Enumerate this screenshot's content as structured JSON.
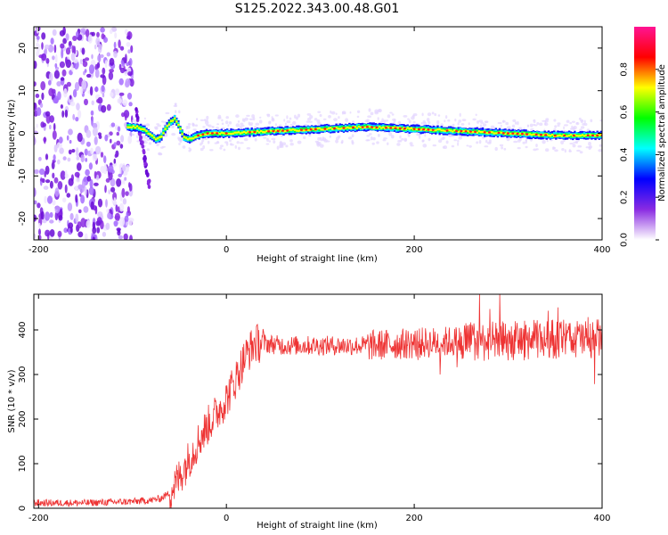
{
  "title": "S125.2022.343.00.48.G01",
  "chart_data": [
    {
      "type": "heatmap",
      "xlabel": "Height of straight line (km)",
      "ylabel": "Frequency (Hz)",
      "xlim": [
        -205,
        400
      ],
      "ylim": [
        -25,
        25
      ],
      "xticks": [
        -200,
        0,
        200,
        400
      ],
      "yticks": [
        -20,
        -10,
        0,
        10,
        20
      ],
      "colorbar": {
        "label": "Normalized spectral amplitude",
        "range": [
          0,
          1
        ],
        "ticks": [
          "0.0",
          "0.2",
          "0.4",
          "0.6",
          "0.8"
        ],
        "colors": [
          "#ffffff",
          "#8a2be2",
          "#0000ff",
          "#00ffff",
          "#00ff00",
          "#ffff00",
          "#ff0000",
          "#ff1493"
        ]
      },
      "noise_region_x": [
        -205,
        -100
      ],
      "ridge": {
        "x": [
          -105,
          -95,
          -90,
          -85,
          -80,
          -75,
          -70,
          -65,
          -60,
          -55,
          -50,
          -45,
          -40,
          -30,
          -20,
          0,
          50,
          100,
          150,
          200,
          250,
          300,
          350,
          400
        ],
        "freq": [
          1.5,
          1.5,
          1.0,
          0.5,
          -0.5,
          -1.5,
          -1.0,
          1.0,
          2.5,
          3.5,
          1.5,
          -1.0,
          -1.5,
          -0.5,
          0.0,
          0.0,
          0.5,
          1.0,
          1.5,
          1.0,
          0.5,
          0.0,
          -0.5,
          -0.5
        ]
      }
    },
    {
      "type": "line",
      "xlabel": "Height of straight line (km)",
      "ylabel": "SNR (10 * v/v)",
      "xlim": [
        -205,
        400
      ],
      "ylim": [
        0,
        480
      ],
      "xticks": [
        -200,
        0,
        200,
        400
      ],
      "yticks": [
        0,
        100,
        200,
        300,
        400
      ],
      "color": "#ee3333",
      "series": [
        {
          "x": [
            -205,
            -150,
            -100,
            -80,
            -70,
            -60,
            -50,
            -40,
            -30,
            -20,
            -10,
            0,
            10,
            20,
            30,
            40,
            60,
            100,
            150,
            200,
            250,
            300,
            350,
            400
          ],
          "y": [
            12,
            12,
            15,
            18,
            22,
            35,
            70,
            110,
            150,
            185,
            215,
            245,
            290,
            340,
            370,
            370,
            365,
            365,
            365,
            370,
            375,
            375,
            380,
            380
          ]
        }
      ]
    }
  ]
}
